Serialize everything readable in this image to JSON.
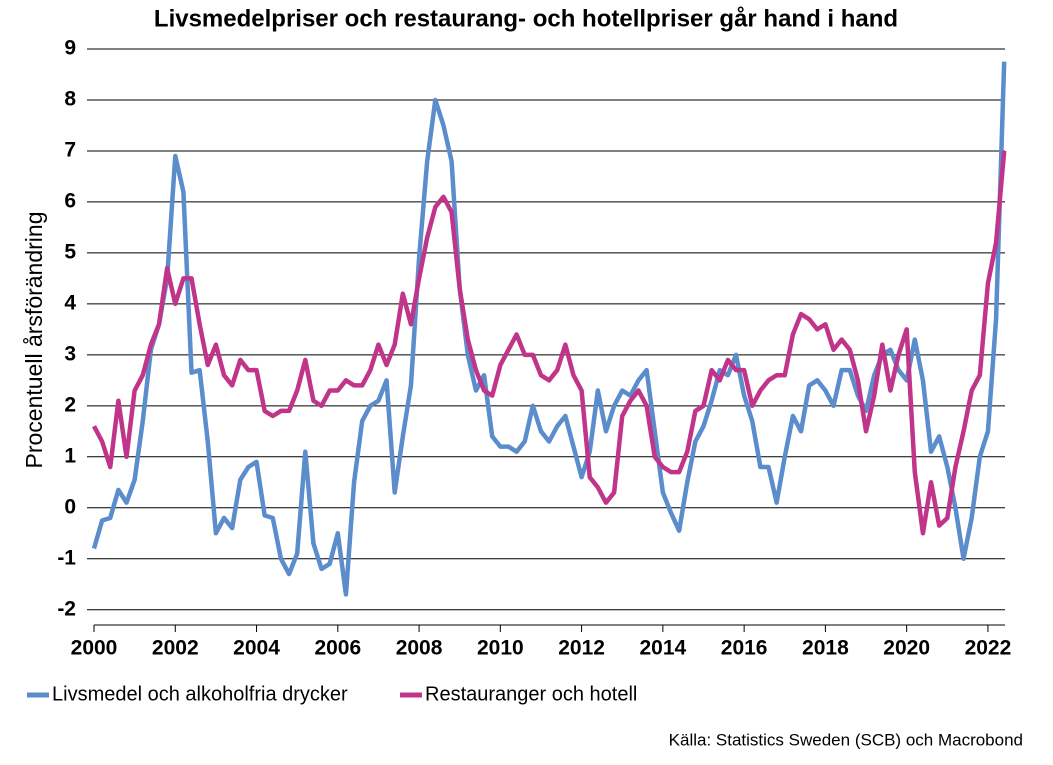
{
  "chart_data": {
    "type": "line",
    "title": "Livsmedelpriser och restaurang- och hotellpriser går hand i hand",
    "y_label": "Procentuell årsförändring",
    "source": "Källa: Statistics Sweden (SCB) och Macrobond",
    "xlim": [
      2000,
      2022.42
    ],
    "xticks": [
      2000,
      2002,
      2004,
      2006,
      2008,
      2010,
      2012,
      2014,
      2016,
      2018,
      2020,
      2022
    ],
    "ylim": [
      -2.3,
      9
    ],
    "yticks": [
      -2,
      -1,
      0,
      1,
      2,
      3,
      4,
      5,
      6,
      7,
      8,
      9
    ],
    "grid": true,
    "legend": "bottom",
    "x": [
      2000,
      2000.2,
      2000.4,
      2000.6,
      2000.8,
      2001,
      2001.2,
      2001.4,
      2001.6,
      2001.8,
      2002,
      2002.2,
      2002.4,
      2002.6,
      2002.8,
      2003,
      2003.2,
      2003.4,
      2003.6,
      2003.8,
      2004,
      2004.2,
      2004.4,
      2004.6,
      2004.8,
      2005,
      2005.2,
      2005.4,
      2005.6,
      2005.8,
      2006,
      2006.2,
      2006.4,
      2006.6,
      2006.8,
      2007,
      2007.2,
      2007.4,
      2007.6,
      2007.8,
      2008,
      2008.2,
      2008.4,
      2008.6,
      2008.8,
      2009,
      2009.2,
      2009.4,
      2009.6,
      2009.8,
      2010,
      2010.2,
      2010.4,
      2010.6,
      2010.8,
      2011,
      2011.2,
      2011.4,
      2011.6,
      2011.8,
      2012,
      2012.2,
      2012.4,
      2012.6,
      2012.8,
      2013,
      2013.2,
      2013.4,
      2013.6,
      2013.8,
      2014,
      2014.2,
      2014.4,
      2014.6,
      2014.8,
      2015,
      2015.2,
      2015.4,
      2015.6,
      2015.8,
      2016,
      2016.2,
      2016.4,
      2016.6,
      2016.8,
      2017,
      2017.2,
      2017.4,
      2017.6,
      2017.8,
      2018,
      2018.2,
      2018.4,
      2018.6,
      2018.8,
      2019,
      2019.2,
      2019.4,
      2019.6,
      2019.8,
      2020,
      2020.2,
      2020.4,
      2020.6,
      2020.8,
      2021,
      2021.2,
      2021.4,
      2021.6,
      2021.8,
      2022,
      2022.2,
      2022.4
    ],
    "series": [
      {
        "name": "Livsmedel och alkoholfria drycker",
        "color": "#5b8ccc",
        "values": [
          -0.8,
          -0.25,
          -0.2,
          0.35,
          0.1,
          0.55,
          1.7,
          3.1,
          3.6,
          4.5,
          6.9,
          6.2,
          2.65,
          2.7,
          1.3,
          -0.5,
          -0.2,
          -0.4,
          0.55,
          0.8,
          0.9,
          -0.15,
          -0.2,
          -1.0,
          -1.3,
          -0.9,
          1.1,
          -0.7,
          -1.2,
          -1.1,
          -0.5,
          -1.7,
          0.5,
          1.7,
          2.0,
          2.1,
          2.5,
          0.3,
          1.4,
          2.4,
          4.9,
          6.8,
          8.0,
          7.5,
          6.8,
          4.3,
          3.0,
          2.3,
          2.6,
          1.4,
          1.2,
          1.2,
          1.1,
          1.3,
          2.0,
          1.5,
          1.3,
          1.6,
          1.8,
          1.2,
          0.6,
          1.1,
          2.3,
          1.5,
          2.0,
          2.3,
          2.2,
          2.5,
          2.7,
          1.5,
          0.3,
          -0.1,
          -0.45,
          0.5,
          1.3,
          1.6,
          2.1,
          2.7,
          2.6,
          3.0,
          2.2,
          1.7,
          0.8,
          0.8,
          0.1,
          1.0,
          1.8,
          1.5,
          2.4,
          2.5,
          2.3,
          2.0,
          2.7,
          2.7,
          2.2,
          1.9,
          2.6,
          3.0,
          3.1,
          2.7,
          2.5,
          3.3,
          2.5,
          1.1,
          1.4,
          0.8,
          0.0,
          -1.0,
          -0.2,
          1.0,
          1.5,
          3.7,
          8.75
        ]
      },
      {
        "name": "Restauranger och hotell",
        "color": "#c0348a",
        "values": [
          1.6,
          1.3,
          0.8,
          2.1,
          1.0,
          2.3,
          2.6,
          3.2,
          3.6,
          4.7,
          4.0,
          4.5,
          4.5,
          3.6,
          2.8,
          3.2,
          2.6,
          2.4,
          2.9,
          2.7,
          2.7,
          1.9,
          1.8,
          1.9,
          1.9,
          2.3,
          2.9,
          2.1,
          2.0,
          2.3,
          2.3,
          2.5,
          2.4,
          2.4,
          2.7,
          3.2,
          2.8,
          3.2,
          4.2,
          3.6,
          4.5,
          5.3,
          5.9,
          6.1,
          5.8,
          4.3,
          3.3,
          2.7,
          2.3,
          2.2,
          2.8,
          3.1,
          3.4,
          3.0,
          3.0,
          2.6,
          2.5,
          2.7,
          3.2,
          2.6,
          2.3,
          0.6,
          0.4,
          0.1,
          0.3,
          1.8,
          2.1,
          2.3,
          2.0,
          1.0,
          0.8,
          0.7,
          0.7,
          1.1,
          1.9,
          2.0,
          2.7,
          2.5,
          2.9,
          2.7,
          2.7,
          2.0,
          2.3,
          2.5,
          2.6,
          2.6,
          3.4,
          3.8,
          3.7,
          3.5,
          3.6,
          3.1,
          3.3,
          3.1,
          2.5,
          1.5,
          2.2,
          3.2,
          2.3,
          3.0,
          3.5,
          0.7,
          -0.5,
          0.5,
          -0.35,
          -0.2,
          0.8,
          1.5,
          2.3,
          2.6,
          4.4,
          5.2,
          7.0
        ]
      }
    ]
  }
}
